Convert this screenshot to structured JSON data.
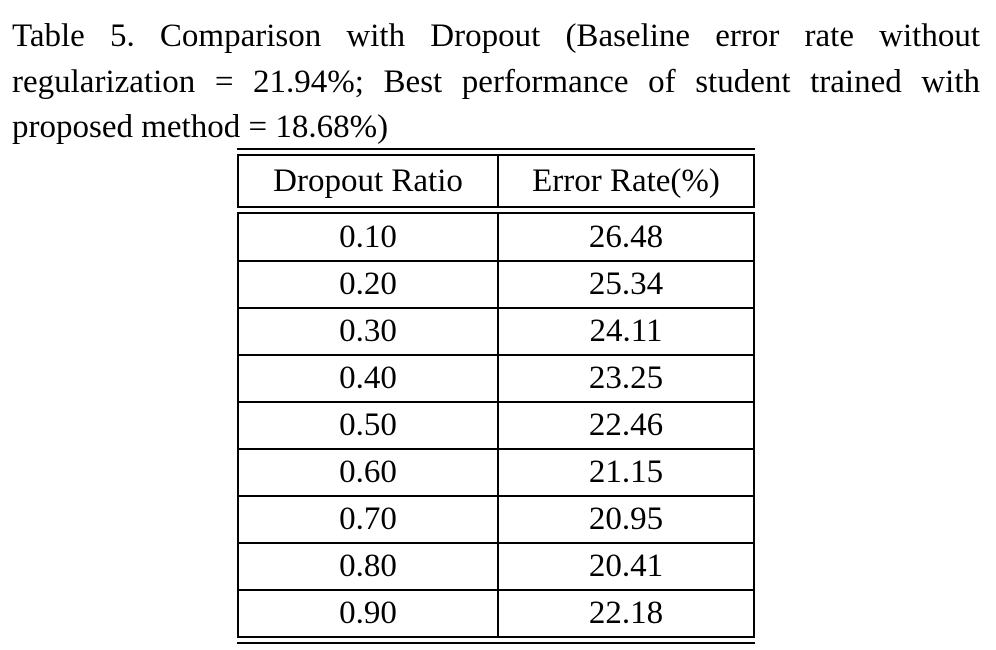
{
  "caption": {
    "line1": "Table 5. Comparison with Dropout (Baseline error rate without",
    "line2": "regularization = 21.94%; Best performance of student trained with",
    "line3": "proposed method = 18.68%)"
  },
  "table": {
    "headers": [
      "Dropout Ratio",
      "Error Rate(%)"
    ],
    "rows": [
      [
        "0.10",
        "26.48"
      ],
      [
        "0.20",
        "25.34"
      ],
      [
        "0.30",
        "24.11"
      ],
      [
        "0.40",
        "23.25"
      ],
      [
        "0.50",
        "22.46"
      ],
      [
        "0.60",
        "21.15"
      ],
      [
        "0.70",
        "20.95"
      ],
      [
        "0.80",
        "20.41"
      ],
      [
        "0.90",
        "22.18"
      ]
    ]
  }
}
